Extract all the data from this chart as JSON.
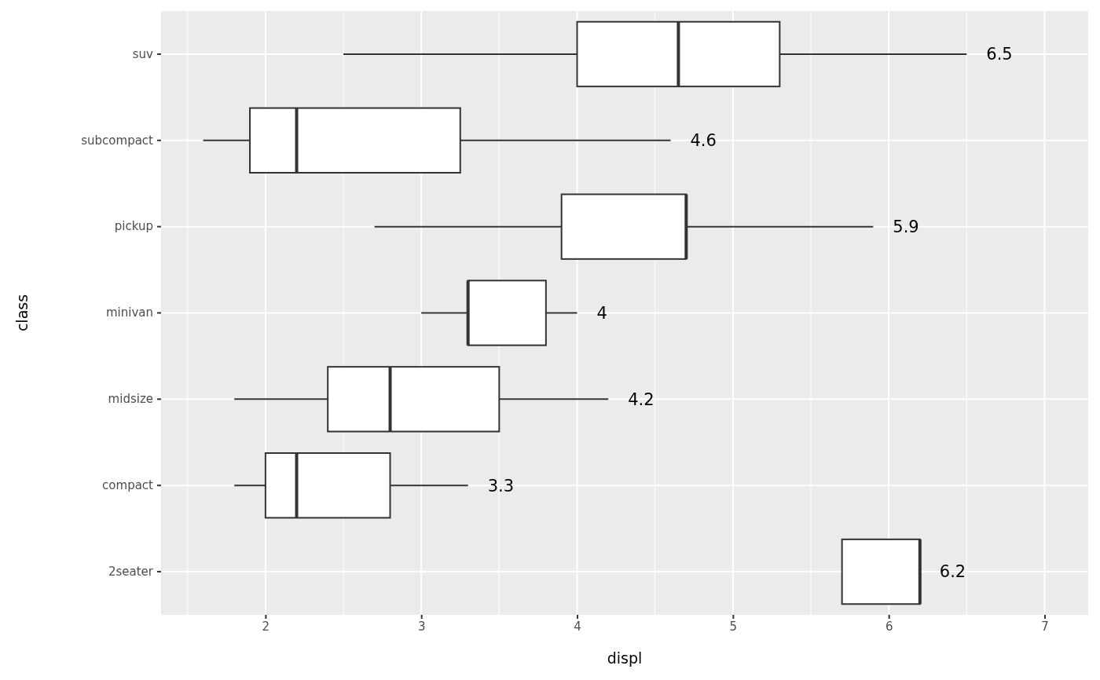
{
  "chart_data": {
    "type": "box",
    "orientation": "horizontal",
    "xlabel": "displ",
    "ylabel": "class",
    "categories": [
      "suv",
      "subcompact",
      "pickup",
      "minivan",
      "midsize",
      "compact",
      "2seater"
    ],
    "boxes": [
      {
        "low": 2.5,
        "q1": 4.0,
        "median": 4.65,
        "q3": 5.3,
        "high": 6.5
      },
      {
        "low": 1.6,
        "q1": 1.9,
        "median": 2.2,
        "q3": 3.25,
        "high": 4.6
      },
      {
        "low": 2.7,
        "q1": 3.9,
        "median": 4.7,
        "q3": 4.7,
        "high": 5.9
      },
      {
        "low": 3.0,
        "q1": 3.3,
        "median": 3.3,
        "q3": 3.8,
        "high": 4.0
      },
      {
        "low": 1.8,
        "q1": 2.4,
        "median": 2.8,
        "q3": 3.5,
        "high": 4.2
      },
      {
        "low": 1.8,
        "q1": 2.0,
        "median": 2.2,
        "q3": 2.8,
        "high": 3.3
      },
      {
        "low": 5.7,
        "q1": 5.7,
        "median": 6.2,
        "q3": 6.2,
        "high": 6.2
      }
    ],
    "color": "#ffffff",
    "xlim": [
      1.33,
      7.28
    ],
    "xticks": [
      {
        "value": 1.5,
        "label": null
      },
      2,
      {
        "value": 2.5,
        "label": null
      },
      3,
      {
        "value": 3.5,
        "label": null
      },
      4,
      {
        "value": 4.5,
        "label": null
      },
      5,
      {
        "value": 5.5,
        "label": null
      },
      6,
      {
        "value": 6.5,
        "label": null
      },
      7
    ],
    "grid": true,
    "annotations": [
      {
        "text": "6.5",
        "x": 6.5,
        "y": "suv"
      },
      {
        "text": "4.6",
        "x": 4.6,
        "y": "subcompact"
      },
      {
        "text": "5.9",
        "x": 5.9,
        "y": "pickup"
      },
      {
        "text": "4",
        "x": 4.0,
        "y": "minivan"
      },
      {
        "text": "4.2",
        "x": 4.2,
        "y": "midsize"
      },
      {
        "text": "3.3",
        "x": 3.3,
        "y": "compact"
      },
      {
        "text": "6.2",
        "x": 6.2,
        "y": "2seater"
      }
    ]
  }
}
